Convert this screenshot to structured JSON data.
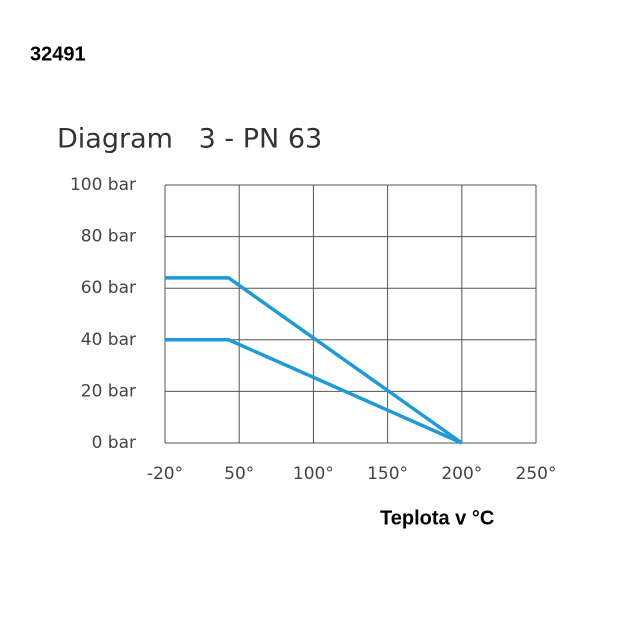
{
  "code": "32491",
  "chart_data": {
    "type": "line",
    "title": "Diagram   3 - PN 63",
    "x_label": "Teplota v °C",
    "xlim": [
      -20,
      250
    ],
    "ylim": [
      0,
      100
    ],
    "xticks": [
      {
        "value": -20,
        "label": "-20°"
      },
      {
        "value": 50,
        "label": "50°"
      },
      {
        "value": 100,
        "label": "100°"
      },
      {
        "value": 150,
        "label": "150°"
      },
      {
        "value": 200,
        "label": "200°"
      },
      {
        "value": 250,
        "label": "250°"
      }
    ],
    "yticks": [
      {
        "value": 0,
        "label": "0 bar"
      },
      {
        "value": 20,
        "label": "20 bar"
      },
      {
        "value": 40,
        "label": "40 bar"
      },
      {
        "value": 60,
        "label": "60 bar"
      },
      {
        "value": 80,
        "label": "80 bar"
      },
      {
        "value": 100,
        "label": "100 bar"
      }
    ],
    "grid": true,
    "series": [
      {
        "color": "#1f9ad6",
        "x": [
          -20,
          40,
          200
        ],
        "values": [
          64,
          64,
          0
        ]
      },
      {
        "color": "#1f9ad6",
        "x": [
          -20,
          40,
          200
        ],
        "values": [
          40,
          40,
          0
        ]
      }
    ]
  }
}
